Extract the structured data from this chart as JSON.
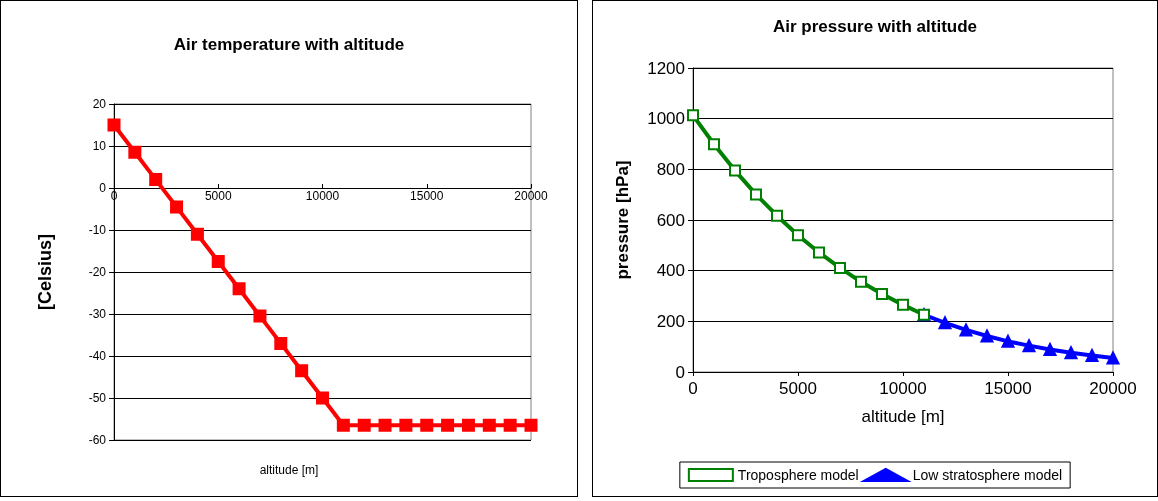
{
  "chart_data": [
    {
      "type": "line",
      "title": "Air temperature with altitude",
      "xlabel": "altitude [m]",
      "ylabel": "[Celsius]",
      "x": [
        0,
        1000,
        2000,
        3000,
        4000,
        5000,
        6000,
        7000,
        8000,
        9000,
        10000,
        11000,
        12000,
        13000,
        14000,
        15000,
        16000,
        17000,
        18000,
        19000,
        20000
      ],
      "series": [
        {
          "color": "#ff0000",
          "marker": "square",
          "values": [
            15,
            8.5,
            2,
            -4.5,
            -11,
            -17.5,
            -24,
            -30.5,
            -37,
            -43.5,
            -50,
            -56.5,
            -56.5,
            -56.5,
            -56.5,
            -56.5,
            -56.5,
            -56.5,
            -56.5,
            -56.5,
            -56.5
          ]
        }
      ],
      "xlim": [
        0,
        20000
      ],
      "xticks": [
        0,
        5000,
        10000,
        15000,
        20000
      ],
      "ylim": [
        -60,
        20
      ],
      "yticks": [
        -60,
        -50,
        -40,
        -30,
        -20,
        -10,
        0,
        10,
        20
      ],
      "grid": "y",
      "legend": false
    },
    {
      "type": "line",
      "title": "Air pressure with altitude",
      "xlabel": "altitude [m]",
      "ylabel": "pressure [hPa]",
      "series": [
        {
          "name": "Troposphere model",
          "color": "#008000",
          "marker": "square",
          "x": [
            0,
            1000,
            2000,
            3000,
            4000,
            5000,
            6000,
            7000,
            8000,
            9000,
            10000,
            11000
          ],
          "values": [
            1013,
            899,
            795,
            701,
            617,
            540,
            472,
            411,
            356,
            308,
            265,
            226
          ]
        },
        {
          "name": "Low stratosphere model",
          "color": "#0000ff",
          "marker": "triangle",
          "x": [
            11000,
            12000,
            13000,
            14000,
            15000,
            16000,
            17000,
            18000,
            19000,
            20000
          ],
          "values": [
            226,
            194,
            166,
            142,
            121,
            104,
            89,
            76,
            65,
            55
          ]
        }
      ],
      "xlim": [
        0,
        20000
      ],
      "xticks": [
        0,
        5000,
        10000,
        15000,
        20000
      ],
      "ylim": [
        0,
        1200
      ],
      "yticks": [
        0,
        200,
        400,
        600,
        800,
        1000,
        1200
      ],
      "grid": "y",
      "legend": "bottom"
    }
  ]
}
